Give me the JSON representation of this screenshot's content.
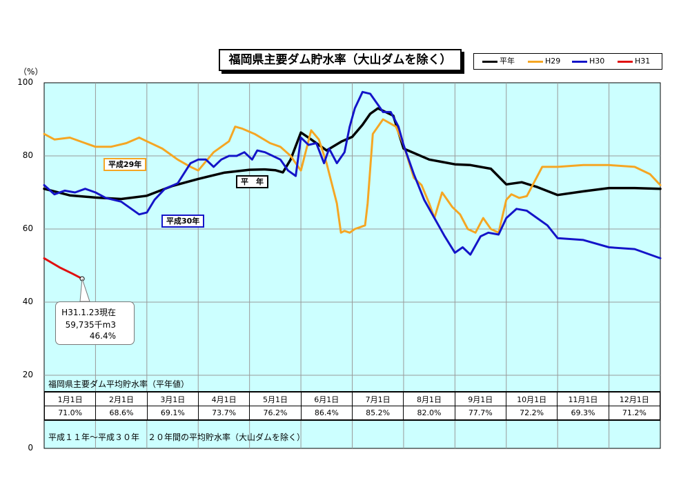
{
  "title": "福岡県主要ダム貯水率（大山ダムを除く）",
  "unit_label": "（%）",
  "legend": [
    {
      "name": "平年",
      "color": "#000000"
    },
    {
      "name": "H29",
      "color": "#f5a623"
    },
    {
      "name": "H30",
      "color": "#1414c8"
    },
    {
      "name": "H31",
      "color": "#e01010"
    }
  ],
  "series_labels": {
    "h29": "平成29年",
    "h30": "平成30年",
    "avg": "平　年"
  },
  "callout": {
    "line1": "H31.1.23現在",
    "line2": "59,735千m3",
    "line3": "46.4%"
  },
  "table": {
    "title": "福岡県主要ダム平均貯水率（平年値）",
    "months": [
      "1月1日",
      "2月1日",
      "3月1日",
      "4月1日",
      "5月1日",
      "6月1日",
      "7月1日",
      "8月1日",
      "9月1日",
      "10月1日",
      "11月1日",
      "12月1日"
    ],
    "values": [
      "71.0%",
      "68.6%",
      "69.1%",
      "73.7%",
      "76.2%",
      "86.4%",
      "85.2%",
      "82.0%",
      "77.7%",
      "72.2%",
      "69.3%",
      "71.2%"
    ],
    "note": "平成１１年～平成３０年　２０年間の平均貯水率（大山ダムを除く）"
  },
  "chart_data": {
    "type": "line",
    "title": "福岡県主要ダム貯水率（大山ダムを除く）",
    "xlabel": "",
    "ylabel": "（%）",
    "ylim": [
      0,
      100
    ],
    "xlim": [
      0,
      12
    ],
    "x_unit": "months from Jan 1",
    "yticks": [
      0,
      20,
      40,
      60,
      80,
      100
    ],
    "grid": true,
    "legend_position": "top-right",
    "categories": [
      "1月1日",
      "2月1日",
      "3月1日",
      "4月1日",
      "5月1日",
      "6月1日",
      "7月1日",
      "8月1日",
      "9月1日",
      "10月1日",
      "11月1日",
      "12月1日"
    ],
    "series": [
      {
        "name": "平年",
        "color": "#000000",
        "x": [
          0,
          0.5,
          1,
          1.5,
          2,
          2.5,
          3,
          3.5,
          4,
          4.3,
          4.5,
          4.65,
          4.8,
          5,
          5.2,
          5.5,
          5.8,
          6,
          6.2,
          6.35,
          6.5,
          6.8,
          7,
          7.5,
          8,
          8.3,
          8.7,
          9,
          9.3,
          9.6,
          10,
          10.5,
          11,
          11.5,
          12
        ],
        "y": [
          71.0,
          69.2,
          68.6,
          68.2,
          69.1,
          71.8,
          73.7,
          75.4,
          76.2,
          76.3,
          76.1,
          75.5,
          79,
          86.4,
          84.5,
          81.5,
          84,
          85.2,
          88.5,
          91.5,
          93,
          91,
          82.0,
          79,
          77.7,
          77.5,
          76.5,
          72.2,
          72.8,
          71.5,
          69.3,
          70.3,
          71.2,
          71.2,
          71.0
        ]
      },
      {
        "name": "H29",
        "color": "#f5a623",
        "x": [
          0,
          0.2,
          0.5,
          0.8,
          1,
          1.3,
          1.6,
          1.85,
          2,
          2.3,
          2.6,
          2.85,
          3,
          3.3,
          3.6,
          3.72,
          3.85,
          4.1,
          4.4,
          4.6,
          4.8,
          5,
          5.2,
          5.35,
          5.5,
          5.7,
          5.78,
          5.85,
          5.95,
          6.05,
          6.15,
          6.25,
          6.3,
          6.4,
          6.6,
          6.85,
          7,
          7.2,
          7.35,
          7.5,
          7.6,
          7.75,
          7.95,
          8.1,
          8.25,
          8.4,
          8.55,
          8.7,
          8.85,
          9,
          9.1,
          9.25,
          9.4,
          9.55,
          9.7,
          10,
          10.5,
          11,
          11.5,
          11.8,
          12
        ],
        "y": [
          86,
          84.5,
          85,
          83.5,
          82.5,
          82.5,
          83.5,
          85,
          84,
          82,
          79,
          77,
          76,
          81,
          84,
          88,
          87.5,
          86,
          83.5,
          82.5,
          80,
          76,
          87,
          84.5,
          78,
          67,
          59,
          59.5,
          59,
          60,
          60.5,
          61,
          67,
          86,
          90,
          88,
          83,
          74,
          72,
          67,
          63,
          70,
          66,
          64,
          60,
          59,
          63,
          60,
          59,
          68,
          69.5,
          68.5,
          69,
          73,
          77,
          77,
          77.5,
          77.5,
          77,
          75,
          72
        ]
      },
      {
        "name": "H30",
        "color": "#1414c8",
        "x": [
          0,
          0.2,
          0.4,
          0.6,
          0.8,
          1,
          1.2,
          1.5,
          1.85,
          2,
          2.15,
          2.35,
          2.6,
          2.85,
          3,
          3.15,
          3.3,
          3.45,
          3.6,
          3.75,
          3.9,
          4.05,
          4.15,
          4.3,
          4.45,
          4.6,
          4.75,
          4.9,
          5,
          5.15,
          5.3,
          5.45,
          5.55,
          5.7,
          5.85,
          5.95,
          6.05,
          6.2,
          6.35,
          6.5,
          6.6,
          6.75,
          6.9,
          7,
          7.2,
          7.4,
          7.6,
          7.8,
          8,
          8.15,
          8.3,
          8.5,
          8.65,
          8.85,
          9,
          9.2,
          9.4,
          9.6,
          9.8,
          10,
          10.5,
          11,
          11.5,
          12
        ],
        "y": [
          72,
          69.5,
          70.5,
          70,
          71,
          70,
          68.5,
          67.5,
          64,
          64.5,
          68,
          71,
          72.5,
          78,
          79,
          79,
          77,
          79,
          80,
          80,
          81,
          79,
          81.5,
          81,
          80,
          79,
          76,
          74.5,
          85,
          83,
          83.5,
          78,
          82,
          78,
          81,
          88,
          93,
          97.5,
          97,
          94,
          92,
          92,
          88,
          83,
          75,
          68,
          63,
          58,
          53.5,
          55,
          53,
          58,
          59,
          58.5,
          63,
          65.5,
          65,
          63,
          61,
          57.5,
          57,
          55,
          54.5,
          52
        ]
      },
      {
        "name": "H31",
        "color": "#e01010",
        "x": [
          0,
          0.3,
          0.55,
          0.74
        ],
        "y": [
          52,
          49.5,
          47.8,
          46.4
        ]
      }
    ]
  }
}
